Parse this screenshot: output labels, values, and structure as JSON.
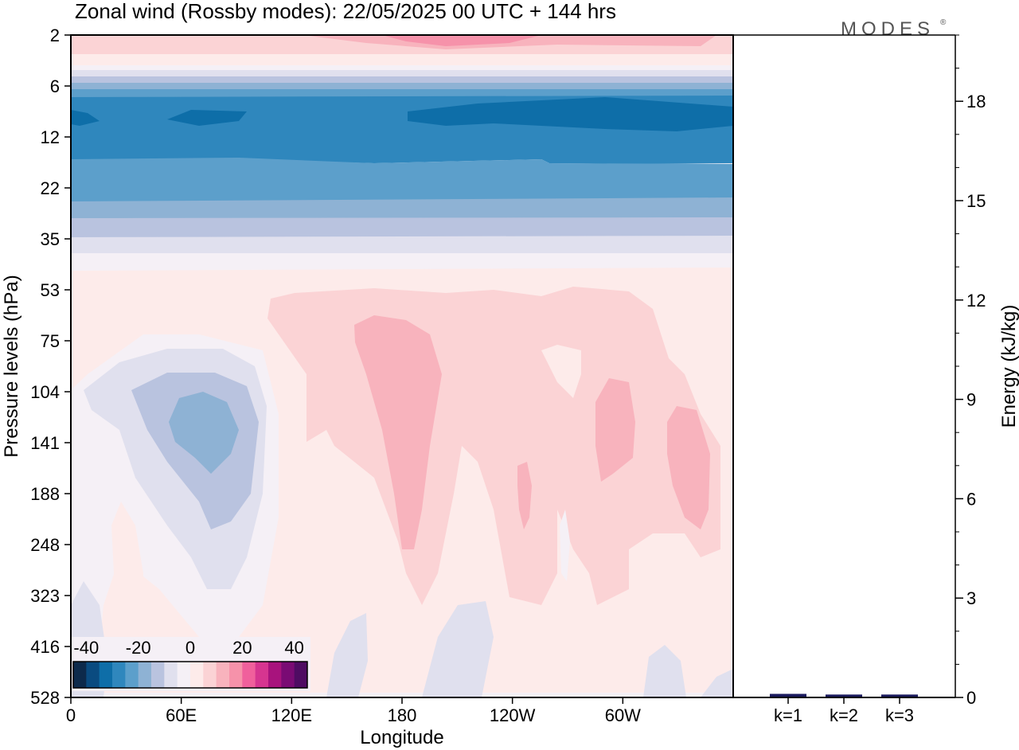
{
  "header": {
    "title": "Zonal wind (Rossby modes):  22/05/2025  00 UTC  + 144 hrs",
    "logo": "MODES",
    "logo_mark": "®"
  },
  "chart_data": [
    {
      "type": "heatmap",
      "title": "Zonal wind (Rossby modes):  22/05/2025  00 UTC  + 144 hrs",
      "xlabel": "Longitude",
      "ylabel": "Pressure levels (hPa)",
      "x_ticks": [
        "0",
        "60E",
        "120E",
        "180",
        "120W",
        "60W"
      ],
      "x_tick_lon": [
        0,
        60,
        120,
        180,
        240,
        300
      ],
      "xlim": [
        0,
        360
      ],
      "y_ticks": [
        "2",
        "6",
        "12",
        "22",
        "35",
        "53",
        "75",
        "104",
        "141",
        "188",
        "248",
        "323",
        "416",
        "528"
      ],
      "y_scale": "pressure levels, top to bottom",
      "colorbar": {
        "tick_labels": [
          "-40",
          "-20",
          "0",
          "20",
          "40"
        ],
        "range": [
          -50,
          50
        ],
        "step": 5,
        "colors": [
          "#0d2a4b",
          "#0a4b80",
          "#0e6ea8",
          "#2f87bd",
          "#5c9fcb",
          "#8eb2d4",
          "#b9c3df",
          "#e0e0ee",
          "#f5f0f6",
          "#fdebea",
          "#fbd3d5",
          "#f8b3bd",
          "#f692aa",
          "#f0609c",
          "#d63590",
          "#a8137d",
          "#7a0b74",
          "#4f0c63"
        ]
      },
      "grid": false
    },
    {
      "type": "bar",
      "ylabel": "Energy (kJ/kg)",
      "categories": [
        "k=1",
        "k=2",
        "k=3"
      ],
      "values": [
        0.06,
        0.04,
        0.04
      ],
      "y_ticks": [
        "0",
        "3",
        "6",
        "9",
        "12",
        "15",
        "18"
      ],
      "ylim": [
        0,
        20
      ],
      "bar_color": "#1a1a5e"
    }
  ]
}
